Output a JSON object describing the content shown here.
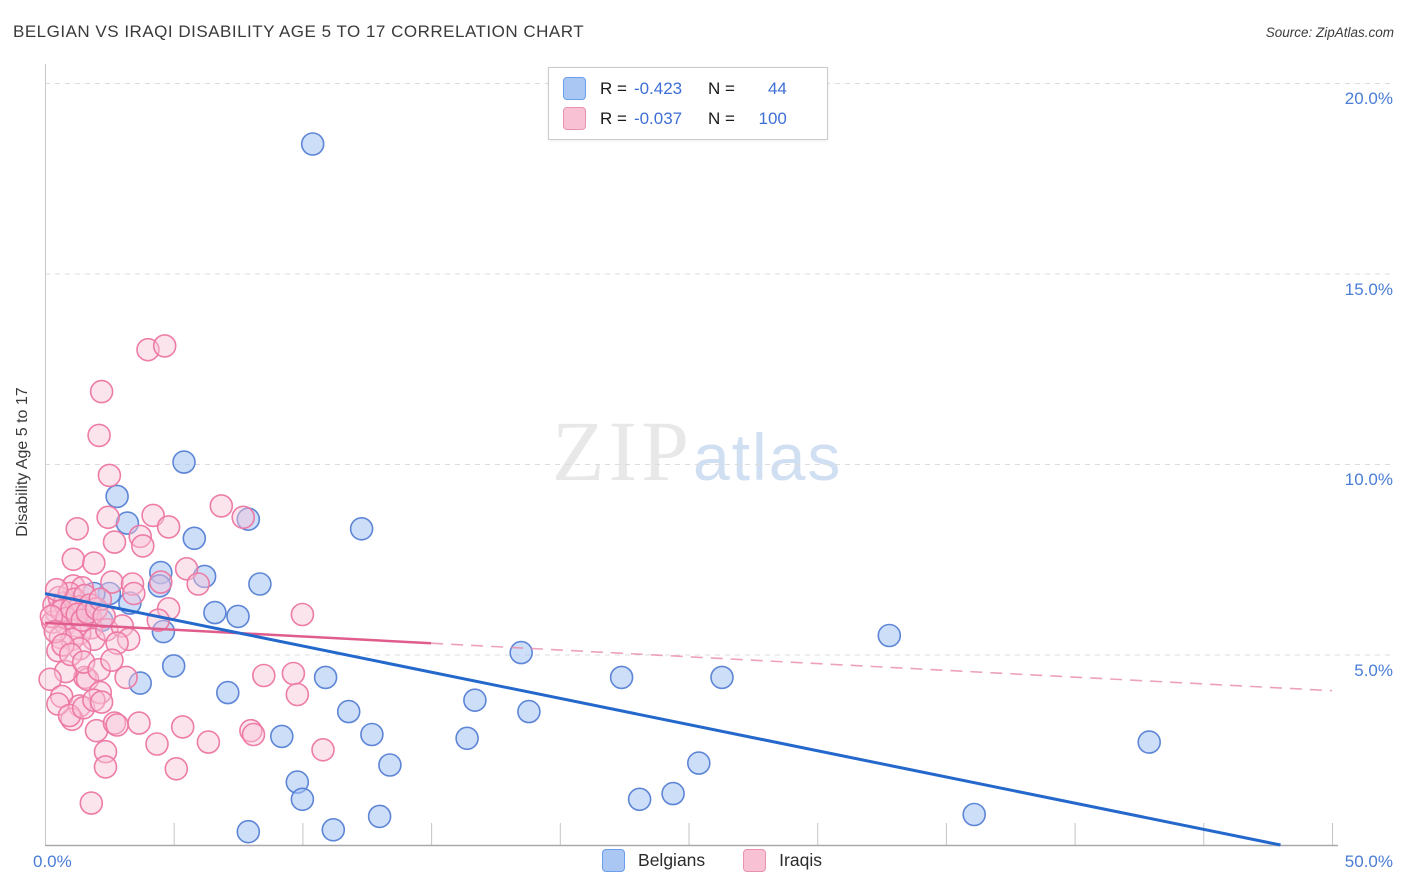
{
  "header": {
    "title": "BELGIAN VS IRAQI DISABILITY AGE 5 TO 17 CORRELATION CHART",
    "source": "Source: ZipAtlas.com"
  },
  "watermark": {
    "zip": "ZIP",
    "atlas": "atlas"
  },
  "colors": {
    "belgian_fill": "rgba(164,194,244,0.55)",
    "belgian_stroke": "rgba(86,128,212,0.95)",
    "belgian_trend": "#2468cc",
    "iraqi_fill": "rgba(249,195,215,0.45)",
    "iraqi_stroke": "rgba(236,118,162,0.95)",
    "iraqi_trend": "#e05c8c",
    "iraqi_trend_dashed": "rgba(232,130,165,0.75)",
    "swatch_belgian_fill": "#a9c7f2",
    "swatch_belgian_border": "#6d9eeb",
    "swatch_iraqi_fill": "#f9c2d4",
    "swatch_iraqi_border": "#e893ae",
    "tick_label": "#4a7dd6",
    "gridline": "#dcdcdc",
    "axis_line": "#c9c9c9",
    "baseline": "#a9a9a9"
  },
  "legend_box": {
    "rows": [
      {
        "series": "Belgians",
        "r_label": "R =",
        "r_value": "-0.423",
        "n_label": "N =",
        "n_value": "44"
      },
      {
        "series": "Iraqis",
        "r_label": "R =",
        "r_value": "-0.037",
        "n_label": "N =",
        "n_value": "100"
      }
    ]
  },
  "bottom_legend": {
    "items": [
      {
        "label": "Belgians"
      },
      {
        "label": "Iraqis"
      }
    ]
  },
  "axes": {
    "y_label": "Disability Age 5 to 17",
    "x_min": 0,
    "x_max": 50,
    "y_min": 0,
    "y_max": 20,
    "x_tick_step": 5,
    "grid": "dashed-horizontal",
    "y_ticks": [
      {
        "value": 20,
        "label": "20.0%"
      },
      {
        "value": 15,
        "label": "15.0%"
      },
      {
        "value": 10,
        "label": "10.0%"
      },
      {
        "value": 5,
        "label": "5.0%"
      }
    ],
    "x_tick_labels": [
      {
        "value": 0,
        "label": "0.0%",
        "align": "left"
      },
      {
        "value": 50,
        "label": "50.0%",
        "align": "right"
      }
    ]
  },
  "chart_data": {
    "type": "scatter",
    "title": "BELGIAN VS IRAQI DISABILITY AGE 5 TO 17 CORRELATION CHART",
    "xlabel": "",
    "ylabel": "Disability Age 5 to 17",
    "xlim": [
      0,
      50
    ],
    "ylim": [
      0,
      20
    ],
    "legend_position": "top-center",
    "series": [
      {
        "name": "Belgians",
        "R": -0.423,
        "N": 44,
        "trend": {
          "x1": 0,
          "y1": 6.6,
          "x2": 48,
          "y2": 0,
          "solid_until_x": 48
        },
        "points": [
          [
            10.4,
            18.4
          ],
          [
            5.4,
            10.05
          ],
          [
            2.8,
            9.15
          ],
          [
            12.3,
            8.3
          ],
          [
            7.9,
            8.55
          ],
          [
            3.2,
            8.45
          ],
          [
            5.8,
            8.05
          ],
          [
            8.35,
            6.85
          ],
          [
            6.6,
            6.1
          ],
          [
            7.5,
            6.0
          ],
          [
            4.5,
            7.15
          ],
          [
            6.2,
            7.05
          ],
          [
            2.5,
            6.6
          ],
          [
            1.9,
            6.6
          ],
          [
            1.5,
            6.15
          ],
          [
            3.3,
            6.35
          ],
          [
            4.6,
            5.6
          ],
          [
            4.45,
            6.8
          ],
          [
            2.2,
            5.9
          ],
          [
            3.7,
            4.25
          ],
          [
            5.0,
            4.7
          ],
          [
            7.1,
            4.0
          ],
          [
            10.9,
            4.4
          ],
          [
            11.8,
            3.5
          ],
          [
            12.7,
            2.9
          ],
          [
            9.2,
            2.85
          ],
          [
            16.7,
            3.8
          ],
          [
            18.8,
            3.5
          ],
          [
            16.4,
            2.8
          ],
          [
            13.4,
            2.1
          ],
          [
            9.8,
            1.65
          ],
          [
            10.0,
            1.2
          ],
          [
            13.0,
            0.75
          ],
          [
            11.2,
            0.4
          ],
          [
            7.9,
            0.35
          ],
          [
            18.5,
            5.05
          ],
          [
            22.4,
            4.4
          ],
          [
            26.3,
            4.4
          ],
          [
            32.8,
            5.5
          ],
          [
            25.4,
            2.15
          ],
          [
            23.1,
            1.2
          ],
          [
            24.4,
            1.35
          ],
          [
            36.1,
            0.8
          ],
          [
            42.9,
            2.7
          ]
        ]
      },
      {
        "name": "Iraqis",
        "R": -0.037,
        "N": 100,
        "trend": {
          "x1": 0,
          "y1": 5.83,
          "x2": 50,
          "y2": 4.05,
          "solid_until_x": 15
        },
        "points": [
          [
            4.0,
            13.0
          ],
          [
            4.65,
            13.1
          ],
          [
            2.2,
            11.9
          ],
          [
            2.1,
            10.75
          ],
          [
            2.5,
            9.7
          ],
          [
            2.45,
            8.6
          ],
          [
            6.85,
            8.9
          ],
          [
            7.7,
            8.6
          ],
          [
            1.25,
            8.3
          ],
          [
            4.2,
            8.65
          ],
          [
            3.7,
            8.1
          ],
          [
            4.8,
            8.35
          ],
          [
            2.7,
            7.95
          ],
          [
            3.8,
            7.85
          ],
          [
            1.1,
            7.5
          ],
          [
            1.9,
            7.4
          ],
          [
            5.5,
            7.25
          ],
          [
            2.6,
            6.9
          ],
          [
            3.4,
            6.85
          ],
          [
            4.5,
            6.9
          ],
          [
            5.95,
            6.85
          ],
          [
            1.1,
            6.8
          ],
          [
            1.45,
            6.75
          ],
          [
            3.45,
            6.6
          ],
          [
            4.8,
            6.2
          ],
          [
            4.4,
            5.9
          ],
          [
            0.45,
            6.1
          ],
          [
            0.9,
            6.1
          ],
          [
            0.3,
            5.85
          ],
          [
            0.8,
            5.8
          ],
          [
            1.25,
            5.75
          ],
          [
            1.75,
            6.0
          ],
          [
            1.8,
            5.7
          ],
          [
            1.35,
            5.55
          ],
          [
            0.6,
            5.45
          ],
          [
            1.05,
            5.4
          ],
          [
            1.9,
            5.4
          ],
          [
            2.4,
            5.65
          ],
          [
            3.0,
            5.75
          ],
          [
            3.25,
            5.4
          ],
          [
            2.8,
            5.3
          ],
          [
            0.5,
            5.1
          ],
          [
            1.35,
            5.15
          ],
          [
            10.0,
            6.05
          ],
          [
            9.65,
            4.5
          ],
          [
            9.8,
            3.95
          ],
          [
            8.5,
            4.45
          ],
          [
            8.0,
            3.0
          ],
          [
            1.55,
            4.4
          ],
          [
            1.65,
            4.35
          ],
          [
            0.8,
            4.55
          ],
          [
            0.2,
            4.35
          ],
          [
            0.65,
            3.9
          ],
          [
            1.35,
            3.65
          ],
          [
            1.05,
            3.3
          ],
          [
            2.15,
            4.0
          ],
          [
            3.15,
            4.4
          ],
          [
            2.0,
            3.0
          ],
          [
            2.7,
            3.2
          ],
          [
            2.8,
            3.15
          ],
          [
            3.65,
            3.2
          ],
          [
            5.35,
            3.1
          ],
          [
            4.35,
            2.65
          ],
          [
            6.35,
            2.7
          ],
          [
            2.35,
            2.45
          ],
          [
            2.35,
            2.05
          ],
          [
            5.1,
            2.0
          ],
          [
            1.8,
            1.1
          ],
          [
            10.8,
            2.5
          ],
          [
            8.1,
            2.9
          ],
          [
            0.5,
            3.7
          ],
          [
            0.95,
            3.4
          ],
          [
            1.5,
            3.6
          ],
          [
            1.9,
            3.8
          ],
          [
            2.2,
            3.75
          ],
          [
            0.35,
            6.3
          ],
          [
            0.55,
            6.5
          ],
          [
            0.75,
            6.35
          ],
          [
            0.95,
            6.6
          ],
          [
            1.15,
            6.45
          ],
          [
            1.35,
            6.25
          ],
          [
            1.55,
            6.55
          ],
          [
            1.75,
            6.3
          ],
          [
            0.45,
            6.7
          ],
          [
            0.65,
            6.15
          ],
          [
            0.85,
            5.95
          ],
          [
            1.05,
            6.2
          ],
          [
            1.25,
            6.05
          ],
          [
            1.45,
            5.9
          ],
          [
            1.65,
            6.1
          ],
          [
            0.25,
            6.0
          ],
          [
            2.0,
            6.2
          ],
          [
            2.15,
            6.45
          ],
          [
            2.3,
            6.0
          ],
          [
            0.4,
            5.6
          ],
          [
            0.7,
            5.25
          ],
          [
            1.0,
            5.0
          ],
          [
            1.5,
            4.8
          ],
          [
            2.1,
            4.6
          ],
          [
            2.6,
            4.85
          ]
        ]
      }
    ]
  }
}
